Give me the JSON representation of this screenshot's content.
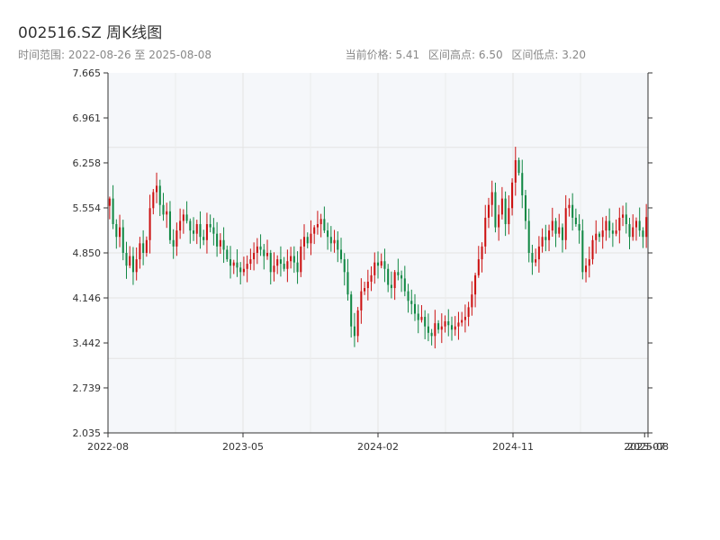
{
  "header": {
    "title": "002516.SZ 周K线图",
    "range_label": "时间范围: 2022-08-26 至 2025-08-08",
    "current_price": "当前价格: 5.41",
    "period_high": "区间高点: 6.50",
    "period_low": "区间低点: 3.20"
  },
  "colors": {
    "up": "#cc1111",
    "down": "#118844",
    "plot_bg": "#f5f7fa",
    "grid": "#e0e0e0",
    "axis": "#333333"
  },
  "chart_data": {
    "type": "candlestick",
    "title": "002516.SZ 周K线图",
    "xlabel": "",
    "ylabel": "",
    "ylim": [
      2.035,
      7.665
    ],
    "y_ticks": [
      "2.035",
      "2.739",
      "3.442",
      "4.146",
      "4.850",
      "5.554",
      "6.258",
      "6.961",
      "7.665"
    ],
    "x_ticks": [
      {
        "label": "2022-08",
        "week": 0
      },
      {
        "label": "2023-05",
        "week": 40
      },
      {
        "label": "2024-02",
        "week": 80
      },
      {
        "label": "2024-11",
        "week": 120
      },
      {
        "label": "2025-07",
        "week": 159
      },
      {
        "label": "2025-08",
        "week": 160
      }
    ],
    "x_range": [
      0,
      160
    ],
    "grid": true,
    "up_color": "#cc1111",
    "down_color": "#118844",
    "closes": [
      5.7,
      5.3,
      5.1,
      5.25,
      4.85,
      4.65,
      4.8,
      4.55,
      4.75,
      5.0,
      4.85,
      5.05,
      5.55,
      5.8,
      5.9,
      5.6,
      5.45,
      5.5,
      5.05,
      4.95,
      5.2,
      5.35,
      5.45,
      5.35,
      5.2,
      5.15,
      5.3,
      5.1,
      5.05,
      5.3,
      5.25,
      5.15,
      4.95,
      5.05,
      4.9,
      4.75,
      4.65,
      4.7,
      4.62,
      4.55,
      4.6,
      4.68,
      4.75,
      4.85,
      4.95,
      4.9,
      4.8,
      4.85,
      4.55,
      4.65,
      4.75,
      4.68,
      4.6,
      4.72,
      4.8,
      4.7,
      4.55,
      4.95,
      5.1,
      5.0,
      5.15,
      5.25,
      5.3,
      5.38,
      5.2,
      5.1,
      5.0,
      5.05,
      4.9,
      4.75,
      4.55,
      4.2,
      3.7,
      3.55,
      3.95,
      4.25,
      4.3,
      4.4,
      4.5,
      4.7,
      4.65,
      4.72,
      4.6,
      4.35,
      4.3,
      4.55,
      4.5,
      4.45,
      4.25,
      4.1,
      4.05,
      3.9,
      3.8,
      3.85,
      3.7,
      3.6,
      3.55,
      3.75,
      3.65,
      3.7,
      3.78,
      3.72,
      3.65,
      3.7,
      3.76,
      3.8,
      3.85,
      4.0,
      4.2,
      4.5,
      4.75,
      4.95,
      5.4,
      5.6,
      5.8,
      5.25,
      5.45,
      5.7,
      5.3,
      5.55,
      5.95,
      6.3,
      6.1,
      5.75,
      5.35,
      4.85,
      4.7,
      4.75,
      4.95,
      5.1,
      5.05,
      5.2,
      5.35,
      5.15,
      5.25,
      5.05,
      5.55,
      5.6,
      5.4,
      5.3,
      5.2,
      4.55,
      4.65,
      4.75,
      5.05,
      5.15,
      5.1,
      5.2,
      5.35,
      5.2,
      5.15,
      5.2,
      5.4,
      5.45,
      5.3,
      5.1,
      5.25,
      5.35,
      5.2,
      5.1,
      5.41
    ]
  }
}
